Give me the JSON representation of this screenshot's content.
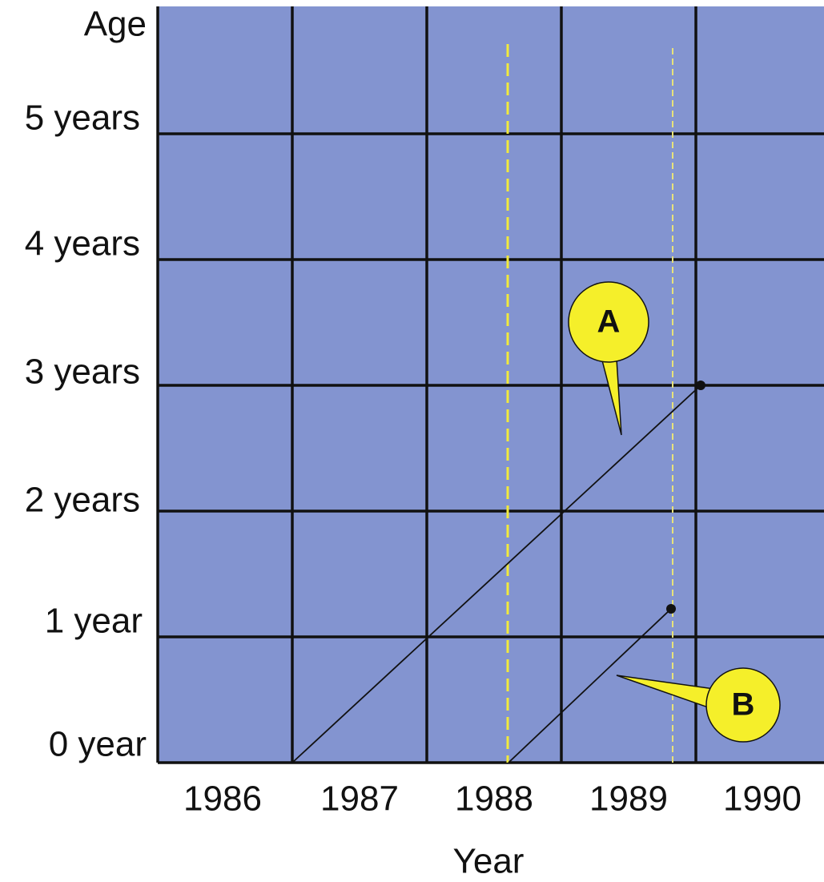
{
  "axes": {
    "y_title": "Age",
    "y_labels": [
      "5 years",
      "4 years",
      "3 years",
      "2 years",
      "1 year",
      "0 year"
    ],
    "x_labels": [
      "1986",
      "1987",
      "1988",
      "1989",
      "1990"
    ],
    "x_title": "Year"
  },
  "callouts": [
    {
      "label": "A"
    },
    {
      "label": "B"
    }
  ]
}
